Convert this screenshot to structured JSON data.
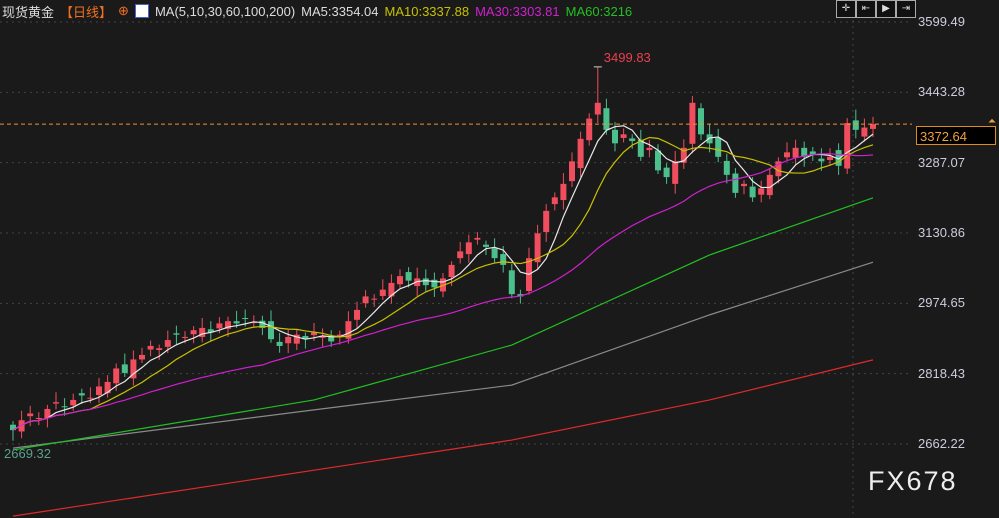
{
  "header": {
    "instrument": "现货黄金",
    "period": "【日线】",
    "period_icon": "crosshair-circle-icon",
    "indicator": "MA(5,10,30,60,100,200)",
    "ma5": "MA5:3354.04",
    "ma10": "MA10:3337.88",
    "ma30": "MA30:3303.81",
    "ma60": "MA60:3216"
  },
  "toolbar": [
    "crosshair-icon",
    "zoom-in-range-icon",
    "play-range-icon",
    "shift-right-icon"
  ],
  "watermark": "FX678",
  "colors": {
    "up": "#f04e5e",
    "down": "#4cc08c",
    "ma5": "#e8e8e8",
    "ma10": "#c8c000",
    "ma30": "#d020d0",
    "ma60": "#22c022",
    "ma100": "#8a8a8a",
    "ma200": "#e02a2a",
    "last": "#f09030"
  },
  "chart_data": {
    "type": "candlestick",
    "ylim": [
      2560,
      3640
    ],
    "yticks": [
      "3599.49",
      "3443.28",
      "3287.07",
      "3130.86",
      "2974.65",
      "2818.43",
      "2662.22"
    ],
    "last_price": "3372.64",
    "high_label": "3499.83",
    "low_label": "2669.32",
    "closes": [
      2693,
      2715,
      2730,
      2720,
      2740,
      2755,
      2745,
      2760,
      2770,
      2765,
      2790,
      2800,
      2830,
      2820,
      2850,
      2860,
      2880,
      2875,
      2893,
      2905,
      2900,
      2915,
      2920,
      2910,
      2930,
      2935,
      2930,
      2940,
      2933,
      2920,
      2895,
      2880,
      2900,
      2905,
      2895,
      2910,
      2902,
      2890,
      2905,
      2935,
      2960,
      2990,
      2985,
      3005,
      3020,
      3035,
      3025,
      3030,
      3015,
      3010,
      3030,
      3060,
      3090,
      3110,
      3120,
      3100,
      3075,
      3060,
      2995,
      2990,
      3075,
      3130,
      3180,
      3210,
      3240,
      3290,
      3340,
      3385,
      3420,
      3360,
      3330,
      3350,
      3335,
      3300,
      3320,
      3270,
      3255,
      3290,
      3320,
      3420,
      3350,
      3330,
      3300,
      3260,
      3220,
      3240,
      3210,
      3230,
      3260,
      3290,
      3310,
      3320,
      3300,
      3305,
      3290,
      3300,
      3280,
      3375,
      3360,
      3365,
      3372.64
    ],
    "ma_long": {
      "index": [
        0,
        35,
        58,
        81,
        100
      ],
      "ma60": [
        2649,
        2760,
        2882,
        3082,
        3209
      ],
      "ma100": [
        2653,
        2738,
        2793,
        2949,
        3066
      ],
      "ma200": [
        2502,
        2604,
        2671,
        2760,
        2849
      ]
    }
  }
}
